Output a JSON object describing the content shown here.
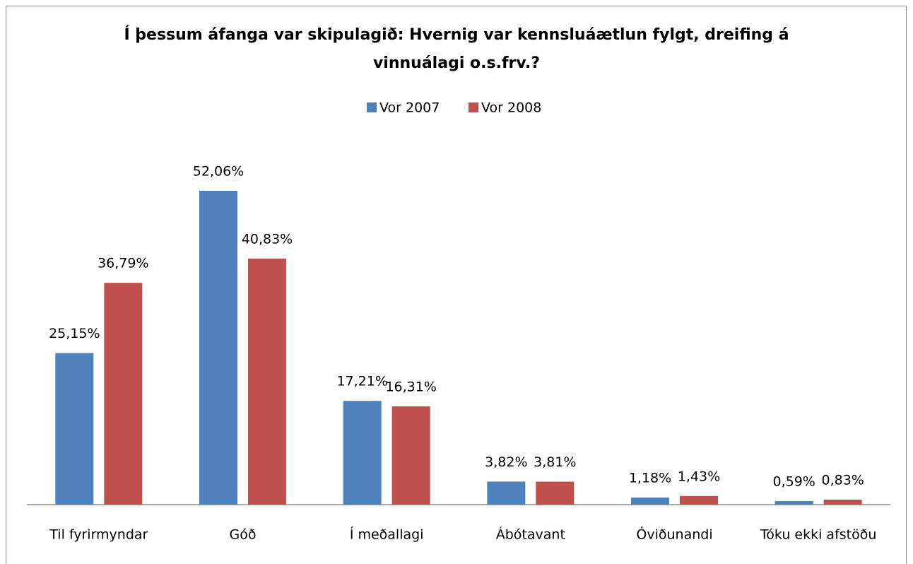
{
  "chart_data": {
    "type": "bar",
    "title": "Í þessum áfanga var skipulagið: Hvernig var kennsluáætlun fylgt, dreifing á vinnuálagi o.s.frv.?",
    "categories": [
      "Til fyrirmyndar",
      "Góð",
      "Í meðallagi",
      "Ábótavant",
      "Óviðunandi",
      "Tóku ekki afstöðu"
    ],
    "series": [
      {
        "name": "Vor 2007",
        "color": "#4f81bd",
        "values": [
          25.15,
          52.06,
          17.21,
          3.82,
          1.18,
          0.59
        ],
        "value_labels": [
          "25,15%",
          "52,06%",
          "17,21%",
          "3,82%",
          "1,18%",
          "0,59%"
        ]
      },
      {
        "name": "Vor 2008",
        "color": "#c0504d",
        "values": [
          36.79,
          40.83,
          16.31,
          3.81,
          1.43,
          0.83
        ],
        "value_labels": [
          "36,79%",
          "40,83%",
          "16,31%",
          "3,81%",
          "1,43%",
          "0,83%"
        ]
      }
    ],
    "legend": "top"
  }
}
